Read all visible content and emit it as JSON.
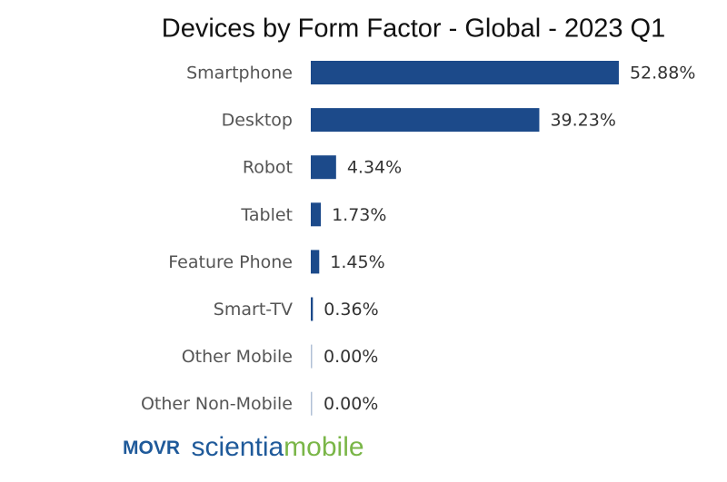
{
  "chart_data": {
    "type": "barh",
    "title": "Devices by Form Factor - Global - 2023 Q1",
    "categories": [
      "Smartphone",
      "Desktop",
      "Robot",
      "Tablet",
      "Feature Phone",
      "Smart-TV",
      "Other Mobile",
      "Other Non-Mobile"
    ],
    "values": [
      52.88,
      39.23,
      4.34,
      1.73,
      1.45,
      0.36,
      0.0,
      0.0
    ],
    "value_labels": [
      "52.88%",
      "39.23%",
      "4.34%",
      "1.73%",
      "1.45%",
      "0.36%",
      "0.00%",
      "0.00%"
    ],
    "color": "#1c4a8a"
  },
  "branding": {
    "movr": "MOVR",
    "scientia": "scientia",
    "mobile": "mobile"
  }
}
